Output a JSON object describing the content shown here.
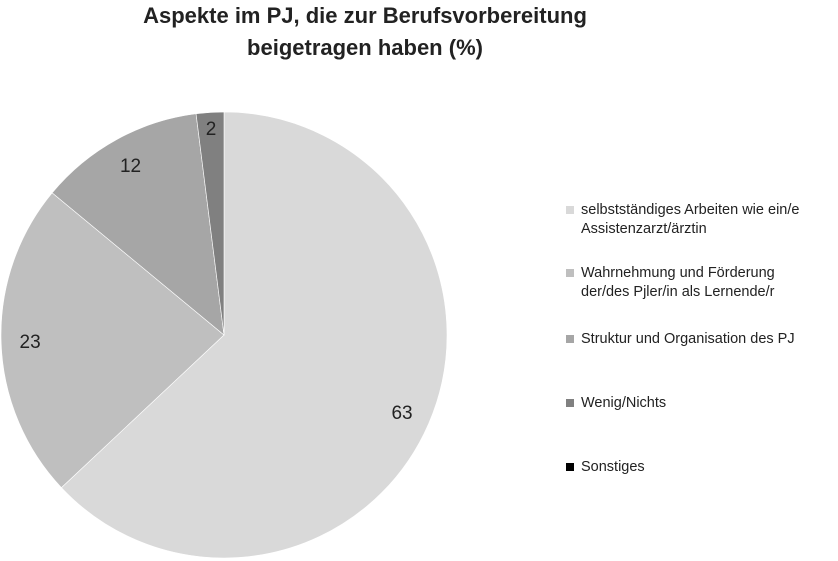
{
  "chart_data": {
    "type": "pie",
    "title_lines": [
      "Aspekte im PJ, die zur Berufsvorbereitung",
      "beigetragen haben (%)"
    ],
    "legend_position": "right",
    "categories": [
      "selbstständiges Arbeiten wie ein/e Assistenzarzt/ärztin",
      "Wahrnehmung und Förderung der/des Pjler/in als Lernende/r",
      "Struktur und Organisation des PJ",
      "Wenig/Nichts",
      "Sonstiges"
    ],
    "legend_lines": [
      [
        "selbstständiges Arbeiten wie ein/e",
        "Assistenzarzt/ärztin"
      ],
      [
        "Wahrnehmung und Förderung",
        "der/des Pjler/in als Lernende/r"
      ],
      [
        "Struktur und Organisation des PJ"
      ],
      [
        "Wenig/Nichts"
      ],
      [
        "Sonstiges"
      ]
    ],
    "values": [
      63,
      23,
      12,
      2,
      0
    ],
    "colors": [
      "#d9d9d9",
      "#bfbfbf",
      "#a6a6a6",
      "#808080",
      "#000000"
    ]
  }
}
